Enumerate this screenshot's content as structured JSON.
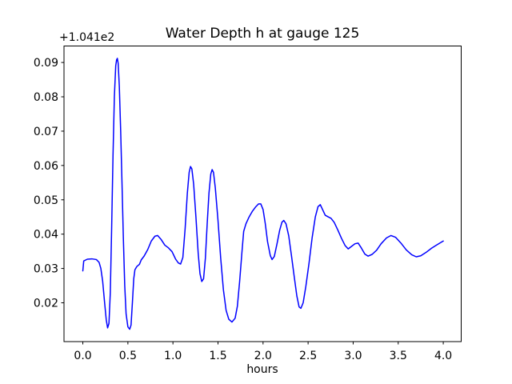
{
  "window": {
    "background": "#ffffff"
  },
  "chart_data": {
    "type": "line",
    "title": "Water Depth h at gauge 125",
    "xlabel": "hours",
    "ylabel": "",
    "y_axis_offset_label": "+1.041e2",
    "y_axis_offset_value": 104.1,
    "grid": false,
    "legend": null,
    "xlim": [
      -0.209,
      4.199
    ],
    "ylim": [
      0.0087,
      0.0948
    ],
    "x_ticks": [
      0.0,
      0.5,
      1.0,
      1.5,
      2.0,
      2.5,
      3.0,
      3.5,
      4.0
    ],
    "x_tick_labels": [
      "0.0",
      "0.5",
      "1.0",
      "1.5",
      "2.0",
      "2.5",
      "3.0",
      "3.5",
      "4.0"
    ],
    "y_ticks": [
      0.02,
      0.03,
      0.04,
      0.05,
      0.06,
      0.07,
      0.08,
      0.09
    ],
    "y_tick_labels": [
      "0.02",
      "0.03",
      "0.04",
      "0.05",
      "0.06",
      "0.07",
      "0.08",
      "0.09"
    ],
    "series": [
      {
        "name": "water-depth-h",
        "color": "#0000ff",
        "line_width": 1.5,
        "points": [
          [
            0.0,
            0.0293
          ],
          [
            0.01,
            0.0322
          ],
          [
            0.05,
            0.0327
          ],
          [
            0.1,
            0.0328
          ],
          [
            0.15,
            0.0326
          ],
          [
            0.18,
            0.0318
          ],
          [
            0.2,
            0.03
          ],
          [
            0.22,
            0.0263
          ],
          [
            0.24,
            0.0205
          ],
          [
            0.26,
            0.015
          ],
          [
            0.275,
            0.0127
          ],
          [
            0.29,
            0.014
          ],
          [
            0.305,
            0.023
          ],
          [
            0.32,
            0.042
          ],
          [
            0.335,
            0.063
          ],
          [
            0.35,
            0.08
          ],
          [
            0.365,
            0.089
          ],
          [
            0.375,
            0.0908
          ],
          [
            0.383,
            0.0912
          ],
          [
            0.392,
            0.0898
          ],
          [
            0.405,
            0.083
          ],
          [
            0.42,
            0.07
          ],
          [
            0.435,
            0.0545
          ],
          [
            0.45,
            0.0385
          ],
          [
            0.465,
            0.025
          ],
          [
            0.48,
            0.0168
          ],
          [
            0.5,
            0.013
          ],
          [
            0.52,
            0.0123
          ],
          [
            0.535,
            0.0135
          ],
          [
            0.55,
            0.02
          ],
          [
            0.565,
            0.027
          ],
          [
            0.578,
            0.0296
          ],
          [
            0.6,
            0.0306
          ],
          [
            0.628,
            0.0312
          ],
          [
            0.648,
            0.0325
          ],
          [
            0.68,
            0.0336
          ],
          [
            0.72,
            0.0355
          ],
          [
            0.76,
            0.038
          ],
          [
            0.8,
            0.0394
          ],
          [
            0.83,
            0.0396
          ],
          [
            0.87,
            0.0384
          ],
          [
            0.91,
            0.0368
          ],
          [
            0.95,
            0.036
          ],
          [
            0.99,
            0.0349
          ],
          [
            1.03,
            0.0327
          ],
          [
            1.06,
            0.0316
          ],
          [
            1.085,
            0.0313
          ],
          [
            1.11,
            0.0332
          ],
          [
            1.135,
            0.0415
          ],
          [
            1.16,
            0.052
          ],
          [
            1.18,
            0.058
          ],
          [
            1.195,
            0.0597
          ],
          [
            1.21,
            0.059
          ],
          [
            1.23,
            0.0545
          ],
          [
            1.255,
            0.045
          ],
          [
            1.28,
            0.0345
          ],
          [
            1.3,
            0.0285
          ],
          [
            1.32,
            0.0262
          ],
          [
            1.34,
            0.027
          ],
          [
            1.36,
            0.033
          ],
          [
            1.38,
            0.043
          ],
          [
            1.4,
            0.052
          ],
          [
            1.42,
            0.0575
          ],
          [
            1.435,
            0.0588
          ],
          [
            1.45,
            0.058
          ],
          [
            1.47,
            0.0535
          ],
          [
            1.5,
            0.044
          ],
          [
            1.53,
            0.033
          ],
          [
            1.56,
            0.0238
          ],
          [
            1.59,
            0.0178
          ],
          [
            1.62,
            0.0152
          ],
          [
            1.655,
            0.0144
          ],
          [
            1.69,
            0.0155
          ],
          [
            1.715,
            0.019
          ],
          [
            1.74,
            0.0262
          ],
          [
            1.765,
            0.0345
          ],
          [
            1.785,
            0.0408
          ],
          [
            1.81,
            0.043
          ],
          [
            1.845,
            0.045
          ],
          [
            1.88,
            0.0466
          ],
          [
            1.92,
            0.048
          ],
          [
            1.95,
            0.0488
          ],
          [
            1.975,
            0.0488
          ],
          [
            2.0,
            0.0472
          ],
          [
            2.025,
            0.043
          ],
          [
            2.05,
            0.0378
          ],
          [
            2.08,
            0.0338
          ],
          [
            2.1,
            0.0326
          ],
          [
            2.125,
            0.0335
          ],
          [
            2.155,
            0.0372
          ],
          [
            2.185,
            0.0412
          ],
          [
            2.21,
            0.0435
          ],
          [
            2.23,
            0.044
          ],
          [
            2.255,
            0.043
          ],
          [
            2.285,
            0.0395
          ],
          [
            2.315,
            0.0338
          ],
          [
            2.345,
            0.0278
          ],
          [
            2.375,
            0.022
          ],
          [
            2.4,
            0.0188
          ],
          [
            2.42,
            0.0184
          ],
          [
            2.445,
            0.02
          ],
          [
            2.475,
            0.0248
          ],
          [
            2.51,
            0.0315
          ],
          [
            2.545,
            0.039
          ],
          [
            2.58,
            0.045
          ],
          [
            2.61,
            0.048
          ],
          [
            2.635,
            0.0486
          ],
          [
            2.66,
            0.0472
          ],
          [
            2.69,
            0.0455
          ],
          [
            2.725,
            0.045
          ],
          [
            2.755,
            0.0446
          ],
          [
            2.79,
            0.0434
          ],
          [
            2.83,
            0.0412
          ],
          [
            2.87,
            0.0388
          ],
          [
            2.91,
            0.0367
          ],
          [
            2.945,
            0.0357
          ],
          [
            2.98,
            0.0364
          ],
          [
            3.02,
            0.0372
          ],
          [
            3.055,
            0.0374
          ],
          [
            3.09,
            0.036
          ],
          [
            3.13,
            0.0342
          ],
          [
            3.165,
            0.0336
          ],
          [
            3.21,
            0.0341
          ],
          [
            3.26,
            0.0353
          ],
          [
            3.31,
            0.0372
          ],
          [
            3.37,
            0.0389
          ],
          [
            3.42,
            0.0396
          ],
          [
            3.47,
            0.0391
          ],
          [
            3.53,
            0.0374
          ],
          [
            3.59,
            0.0354
          ],
          [
            3.65,
            0.034
          ],
          [
            3.7,
            0.0334
          ],
          [
            3.75,
            0.0337
          ],
          [
            3.81,
            0.0347
          ],
          [
            3.87,
            0.0359
          ],
          [
            3.93,
            0.0369
          ],
          [
            4.0,
            0.038
          ]
        ]
      }
    ],
    "colors": {
      "line": "#0000ff",
      "frame": "#000000",
      "text": "#000000",
      "background": "#ffffff"
    }
  }
}
